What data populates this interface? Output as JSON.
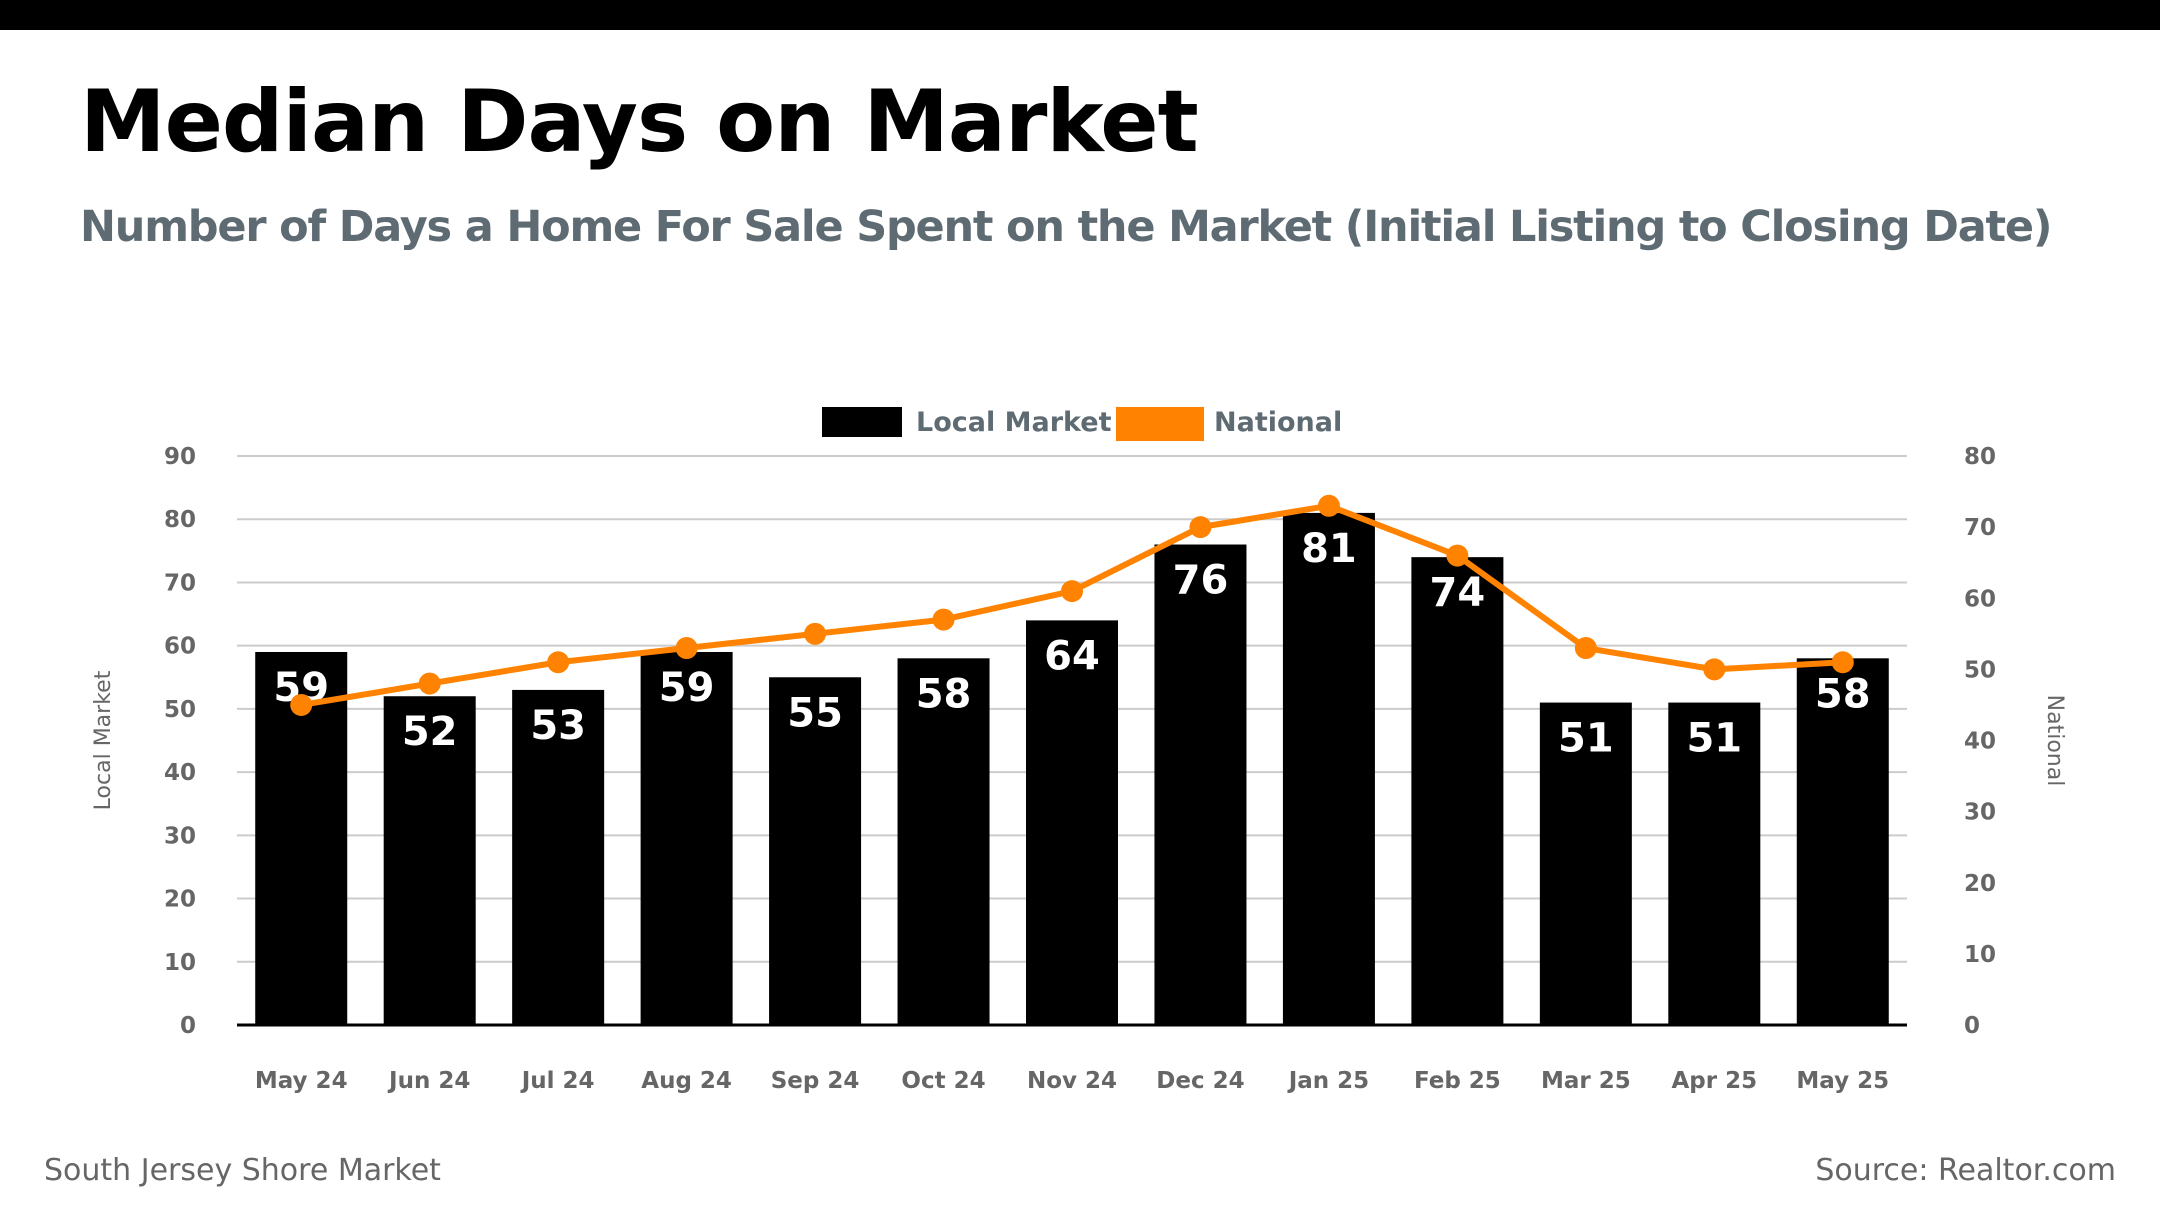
{
  "header": {
    "title": "Median Days on Market",
    "subtitle": "Number of Days a Home For Sale Spent on the Market (Initial Listing to Closing Date)"
  },
  "footer": {
    "left": "South Jersey Shore Market",
    "right": "Source: Realtor.com"
  },
  "colors": {
    "bar": "#000000",
    "line": "#ff8300",
    "subtitle": "#5f6b73",
    "axis_text": "#666666",
    "grid": "#cccccc"
  },
  "chart_data": {
    "type": "bar",
    "title": "Median Days on Market",
    "subtitle": "Number of Days a Home For Sale Spent on the Market (Initial Listing to Closing Date)",
    "categories": [
      "May 24",
      "Jun 24",
      "Jul 24",
      "Aug 24",
      "Sep 24",
      "Oct 24",
      "Nov 24",
      "Dec 24",
      "Jan 25",
      "Feb 25",
      "Mar 25",
      "Apr 25",
      "May 25"
    ],
    "series": [
      {
        "name": "Local Market",
        "type": "bar",
        "axis": "left",
        "values": [
          59,
          52,
          53,
          59,
          55,
          58,
          64,
          76,
          81,
          74,
          51,
          51,
          58
        ],
        "labels": [
          "59",
          "52",
          "53",
          "59",
          "55",
          "58",
          "64",
          "76",
          "81",
          "74",
          "51",
          "51",
          "58"
        ]
      },
      {
        "name": "National",
        "type": "line",
        "axis": "right",
        "values": [
          45,
          48,
          51,
          53,
          55,
          57,
          61,
          70,
          73,
          66,
          53,
          50,
          51
        ]
      }
    ],
    "ylabel": "Local Market",
    "y2label": "National",
    "ylim": [
      0,
      90
    ],
    "y2lim": [
      0,
      80
    ],
    "yticks": [
      "0",
      "10",
      "20",
      "30",
      "40",
      "50",
      "60",
      "70",
      "80",
      "90"
    ],
    "y2ticks": [
      "0",
      "10",
      "20",
      "30",
      "40",
      "50",
      "60",
      "70",
      "80"
    ],
    "grid": true,
    "legend_position": "top-center"
  }
}
